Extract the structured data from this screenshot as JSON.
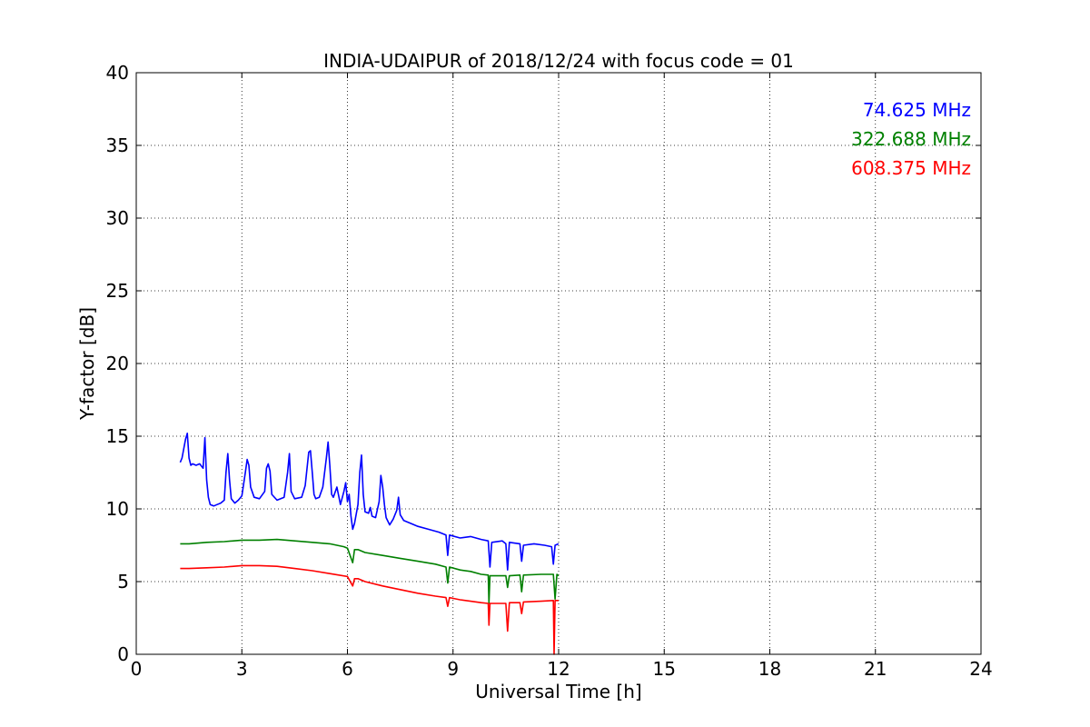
{
  "chart_data": {
    "type": "line",
    "title": "INDIA-UDAIPUR of 2018/12/24 with focus code = 01",
    "xlabel": "Universal Time [h]",
    "ylabel": "Y-factor [dB]",
    "xlim": [
      0,
      24
    ],
    "ylim": [
      0,
      40
    ],
    "xticks": [
      0,
      3,
      6,
      9,
      12,
      15,
      18,
      21,
      24
    ],
    "yticks": [
      0,
      5,
      10,
      15,
      20,
      25,
      30,
      35,
      40
    ],
    "grid": true,
    "legend_position": "top-right",
    "series": [
      {
        "name": "74.625 MHz",
        "color": "#0000ff",
        "x": [
          1.25,
          1.3,
          1.4,
          1.45,
          1.5,
          1.55,
          1.6,
          1.7,
          1.8,
          1.9,
          1.95,
          2.0,
          2.05,
          2.1,
          2.2,
          2.3,
          2.4,
          2.5,
          2.55,
          2.6,
          2.65,
          2.7,
          2.8,
          2.9,
          3.0,
          3.1,
          3.15,
          3.2,
          3.25,
          3.35,
          3.5,
          3.65,
          3.7,
          3.75,
          3.8,
          3.85,
          4.0,
          4.2,
          4.3,
          4.35,
          4.4,
          4.5,
          4.7,
          4.8,
          4.9,
          4.95,
          5.0,
          5.05,
          5.1,
          5.2,
          5.3,
          5.4,
          5.45,
          5.5,
          5.55,
          5.6,
          5.7,
          5.8,
          5.9,
          5.95,
          6.0,
          6.05,
          6.1,
          6.15,
          6.2,
          6.3,
          6.35,
          6.4,
          6.45,
          6.5,
          6.6,
          6.65,
          6.7,
          6.8,
          6.9,
          6.95,
          7.0,
          7.05,
          7.1,
          7.2,
          7.3,
          7.4,
          7.45,
          7.5,
          7.6,
          7.8,
          8.0,
          8.3,
          8.6,
          8.8,
          8.85,
          8.9,
          9.2,
          9.5,
          9.8,
          10.0,
          10.05,
          10.1,
          10.4,
          10.5,
          10.55,
          10.6,
          10.9,
          10.95,
          11.0,
          11.3,
          11.6,
          11.8,
          11.85,
          11.9,
          12.0
        ],
        "y": [
          13.2,
          13.5,
          14.8,
          15.2,
          13.5,
          13.0,
          13.1,
          13.0,
          13.1,
          12.8,
          14.9,
          12.0,
          10.8,
          10.3,
          10.2,
          10.3,
          10.4,
          10.6,
          12.5,
          13.8,
          12.0,
          10.7,
          10.4,
          10.6,
          10.9,
          12.5,
          13.4,
          13.0,
          11.5,
          10.8,
          10.7,
          11.2,
          12.8,
          13.1,
          12.6,
          11.0,
          10.6,
          10.8,
          12.5,
          13.8,
          11.2,
          10.7,
          10.8,
          11.6,
          13.9,
          14.0,
          12.5,
          11.0,
          10.7,
          10.8,
          11.5,
          13.5,
          14.6,
          13.0,
          11.0,
          10.8,
          11.5,
          10.3,
          11.2,
          11.8,
          10.5,
          11.0,
          9.5,
          8.6,
          9.0,
          10.3,
          12.5,
          13.7,
          11.0,
          9.8,
          9.7,
          10.1,
          9.5,
          9.4,
          10.5,
          12.3,
          11.5,
          10.3,
          9.4,
          8.9,
          9.3,
          9.9,
          10.8,
          9.6,
          9.2,
          9.0,
          8.8,
          8.6,
          8.4,
          8.2,
          6.8,
          8.2,
          8.0,
          8.1,
          7.9,
          7.8,
          6.0,
          7.7,
          7.8,
          7.6,
          5.8,
          7.7,
          7.6,
          6.4,
          7.5,
          7.6,
          7.5,
          7.4,
          6.2,
          7.5,
          7.6
        ]
      },
      {
        "name": "322.688 MHz",
        "color": "#008000",
        "x": [
          1.25,
          1.5,
          2.0,
          2.5,
          3.0,
          3.5,
          4.0,
          4.5,
          5.0,
          5.5,
          5.9,
          6.0,
          6.15,
          6.2,
          6.3,
          6.5,
          7.0,
          7.5,
          8.0,
          8.5,
          8.8,
          8.85,
          8.9,
          9.2,
          9.5,
          9.8,
          10.0,
          10.02,
          10.05,
          10.3,
          10.5,
          10.55,
          10.6,
          10.9,
          10.95,
          11.0,
          11.5,
          11.85,
          11.9,
          11.95,
          12.0
        ],
        "y": [
          7.6,
          7.6,
          7.7,
          7.75,
          7.85,
          7.85,
          7.9,
          7.8,
          7.7,
          7.6,
          7.4,
          7.3,
          6.3,
          7.2,
          7.2,
          7.0,
          6.8,
          6.6,
          6.4,
          6.2,
          6.0,
          4.9,
          6.0,
          5.8,
          5.7,
          5.5,
          5.45,
          3.5,
          5.4,
          5.4,
          5.4,
          4.6,
          5.4,
          5.45,
          4.3,
          5.45,
          5.5,
          5.5,
          3.8,
          5.5,
          5.4
        ]
      },
      {
        "name": "608.375 MHz",
        "color": "#ff0000",
        "x": [
          1.25,
          1.5,
          2.0,
          2.5,
          3.0,
          3.5,
          4.0,
          4.5,
          5.0,
          5.5,
          6.0,
          6.15,
          6.2,
          6.3,
          6.5,
          7.0,
          7.5,
          8.0,
          8.5,
          8.8,
          8.85,
          8.9,
          9.2,
          9.5,
          9.8,
          10.0,
          10.02,
          10.05,
          10.3,
          10.5,
          10.55,
          10.6,
          10.9,
          10.95,
          11.0,
          11.5,
          11.85,
          11.87,
          11.9,
          12.0
        ],
        "y": [
          5.9,
          5.9,
          5.95,
          6.0,
          6.1,
          6.1,
          6.05,
          5.9,
          5.75,
          5.55,
          5.35,
          4.7,
          5.2,
          5.2,
          5.0,
          4.7,
          4.45,
          4.2,
          4.0,
          3.9,
          3.3,
          3.9,
          3.75,
          3.65,
          3.55,
          3.5,
          2.0,
          3.5,
          3.5,
          3.5,
          1.6,
          3.55,
          3.55,
          2.8,
          3.6,
          3.65,
          3.7,
          0.0,
          3.7,
          3.7
        ]
      }
    ]
  }
}
